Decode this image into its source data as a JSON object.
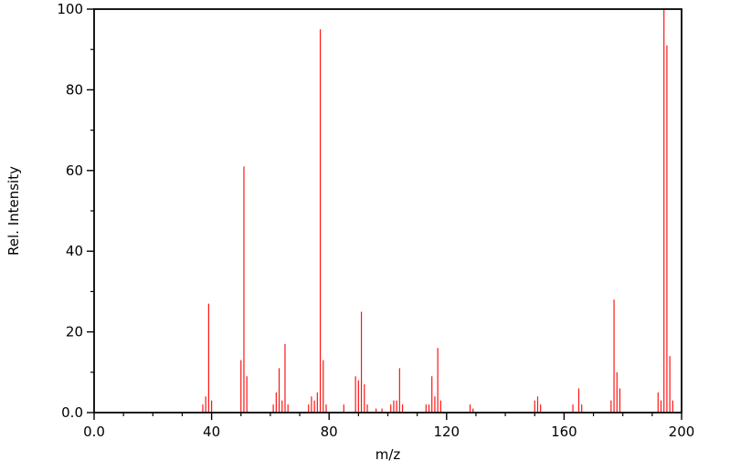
{
  "chart_data": {
    "type": "bar",
    "title": "",
    "xlabel": "m/z",
    "ylabel": "Rel. Intensity",
    "xlim": [
      0,
      200
    ],
    "ylim": [
      0,
      100
    ],
    "grid": false,
    "legend": "none",
    "peak_color": "#ff1414",
    "frame_color": "#000000",
    "x_ticks": {
      "values": [
        0,
        40,
        80,
        120,
        160,
        200
      ],
      "labels": [
        "0.0",
        "40",
        "80",
        "120",
        "160",
        "200"
      ]
    },
    "y_ticks": {
      "values": [
        0,
        20,
        40,
        60,
        80,
        100
      ],
      "labels": [
        "0.0",
        "20",
        "40",
        "60",
        "80",
        "100"
      ]
    },
    "x_minor_step": 10,
    "y_minor_step": 10,
    "peaks": [
      [
        37,
        2
      ],
      [
        38,
        4
      ],
      [
        39,
        27
      ],
      [
        40,
        3
      ],
      [
        50,
        13
      ],
      [
        51,
        61
      ],
      [
        52,
        9
      ],
      [
        61,
        2
      ],
      [
        62,
        5
      ],
      [
        63,
        11
      ],
      [
        64,
        3
      ],
      [
        65,
        17
      ],
      [
        66,
        2
      ],
      [
        73,
        2
      ],
      [
        74,
        4
      ],
      [
        75,
        3
      ],
      [
        76,
        5
      ],
      [
        77,
        95
      ],
      [
        78,
        13
      ],
      [
        79,
        2
      ],
      [
        85,
        2
      ],
      [
        89,
        9
      ],
      [
        90,
        8
      ],
      [
        91,
        25
      ],
      [
        92,
        7
      ],
      [
        93,
        2
      ],
      [
        96,
        1
      ],
      [
        98,
        1
      ],
      [
        101,
        2
      ],
      [
        102,
        3
      ],
      [
        103,
        3
      ],
      [
        104,
        11
      ],
      [
        105,
        2
      ],
      [
        113,
        2
      ],
      [
        114,
        2
      ],
      [
        115,
        9
      ],
      [
        116,
        4
      ],
      [
        117,
        16
      ],
      [
        118,
        3
      ],
      [
        128,
        2
      ],
      [
        129,
        1
      ],
      [
        150,
        3
      ],
      [
        151,
        4
      ],
      [
        152,
        2
      ],
      [
        163,
        2
      ],
      [
        165,
        6
      ],
      [
        166,
        2
      ],
      [
        176,
        3
      ],
      [
        177,
        28
      ],
      [
        178,
        10
      ],
      [
        179,
        6
      ],
      [
        192,
        5
      ],
      [
        193,
        3
      ],
      [
        194,
        100
      ],
      [
        195,
        91
      ],
      [
        196,
        14
      ],
      [
        197,
        3
      ]
    ]
  }
}
